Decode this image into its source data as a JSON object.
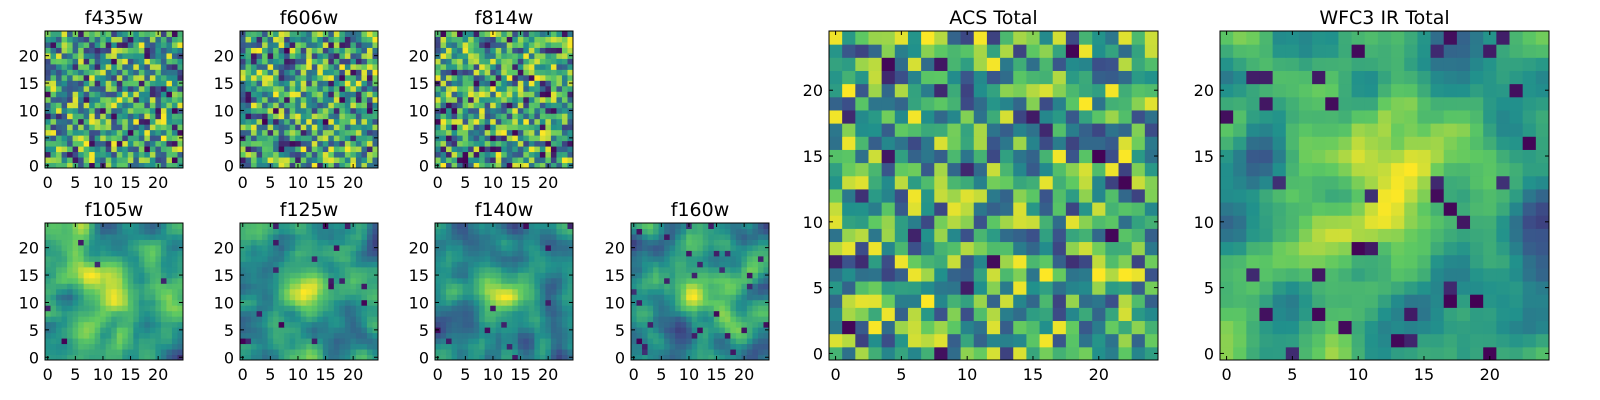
{
  "figure": {
    "colormap": "viridis",
    "colors": [
      "#440154",
      "#3b528b",
      "#21918c",
      "#5ec962",
      "#fde725"
    ]
  },
  "chart_data": [
    {
      "type": "heatmap",
      "title": "f435w",
      "grid": [
        25,
        25
      ],
      "xlim": [
        0,
        24
      ],
      "ylim": [
        0,
        24
      ],
      "xticks": [
        0,
        5,
        10,
        15,
        20
      ],
      "yticks": [
        0,
        5,
        10,
        15,
        20
      ],
      "seed": 11,
      "style": "noise",
      "dark_frac": 0.08
    },
    {
      "type": "heatmap",
      "title": "f606w",
      "grid": [
        25,
        25
      ],
      "xlim": [
        0,
        24
      ],
      "ylim": [
        0,
        24
      ],
      "xticks": [
        0,
        5,
        10,
        15,
        20
      ],
      "yticks": [
        0,
        5,
        10,
        15,
        20
      ],
      "seed": 23,
      "style": "noise",
      "dark_frac": 0.09
    },
    {
      "type": "heatmap",
      "title": "f814w",
      "grid": [
        25,
        25
      ],
      "xlim": [
        0,
        24
      ],
      "ylim": [
        0,
        24
      ],
      "xticks": [
        0,
        5,
        10,
        15,
        20
      ],
      "yticks": [
        0,
        5,
        10,
        15,
        20
      ],
      "seed": 37,
      "style": "noise",
      "dark_frac": 0.09
    },
    {
      "type": "heatmap",
      "title": "f105w",
      "grid": [
        25,
        25
      ],
      "xlim": [
        0,
        24
      ],
      "ylim": [
        0,
        24
      ],
      "xticks": [
        0,
        5,
        10,
        15,
        20
      ],
      "yticks": [
        0,
        5,
        10,
        15,
        20
      ],
      "seed": 41,
      "style": "smooth",
      "dark_frac": 0.02
    },
    {
      "type": "heatmap",
      "title": "f125w",
      "grid": [
        25,
        25
      ],
      "xlim": [
        0,
        24
      ],
      "ylim": [
        0,
        24
      ],
      "xticks": [
        0,
        5,
        10,
        15,
        20
      ],
      "yticks": [
        0,
        5,
        10,
        15,
        20
      ],
      "seed": 53,
      "style": "smooth",
      "dark_frac": 0.03
    },
    {
      "type": "heatmap",
      "title": "f140w",
      "grid": [
        25,
        25
      ],
      "xlim": [
        0,
        24
      ],
      "ylim": [
        0,
        24
      ],
      "xticks": [
        0,
        5,
        10,
        15,
        20
      ],
      "yticks": [
        0,
        5,
        10,
        15,
        20
      ],
      "seed": 67,
      "style": "smooth",
      "dark_frac": 0.03
    },
    {
      "type": "heatmap",
      "title": "f160w",
      "grid": [
        25,
        25
      ],
      "xlim": [
        0,
        24
      ],
      "ylim": [
        0,
        24
      ],
      "xticks": [
        0,
        5,
        10,
        15,
        20
      ],
      "yticks": [
        0,
        5,
        10,
        15,
        20
      ],
      "seed": 79,
      "style": "smooth",
      "dark_frac": 0.04
    },
    {
      "type": "heatmap",
      "title": "ACS Total",
      "grid": [
        25,
        25
      ],
      "xlim": [
        0,
        24
      ],
      "ylim": [
        0,
        24
      ],
      "xticks": [
        0,
        5,
        10,
        15,
        20
      ],
      "yticks": [
        0,
        5,
        10,
        15,
        20
      ],
      "seed": 97,
      "style": "noise",
      "dark_frac": 0.03
    },
    {
      "type": "heatmap",
      "title": "WFC3 IR Total",
      "grid": [
        25,
        25
      ],
      "xlim": [
        0,
        24
      ],
      "ylim": [
        0,
        24
      ],
      "xticks": [
        0,
        5,
        10,
        15,
        20
      ],
      "yticks": [
        0,
        5,
        10,
        15,
        20
      ],
      "seed": 113,
      "style": "smooth",
      "dark_frac": 0.05
    }
  ]
}
